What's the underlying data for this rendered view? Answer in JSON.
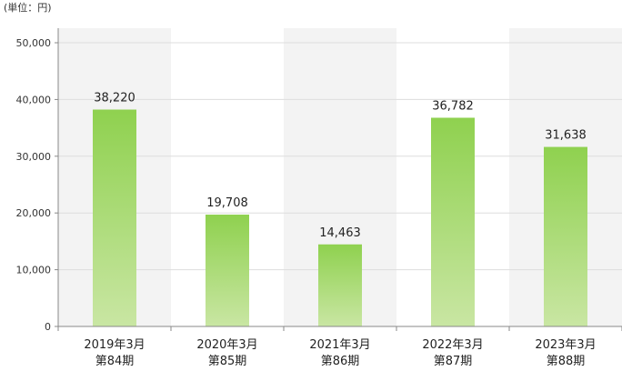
{
  "chart_data": {
    "type": "bar",
    "unit_label": "(単位：円)",
    "categories": [
      [
        "2019年3月",
        "第84期"
      ],
      [
        "2020年3月",
        "第85期"
      ],
      [
        "2021年3月",
        "第86期"
      ],
      [
        "2022年3月",
        "第87期"
      ],
      [
        "2023年3月",
        "第88期"
      ]
    ],
    "values": [
      38220,
      19708,
      14463,
      36782,
      31638
    ],
    "data_labels": [
      "38,220",
      "19,708",
      "14,463",
      "36,782",
      "31,638"
    ],
    "ylim": [
      0,
      50000
    ],
    "yticks": [
      0,
      10000,
      20000,
      30000,
      40000,
      50000
    ],
    "ytick_labels": [
      "0",
      "10,000",
      "20,000",
      "30,000",
      "40,000",
      "50,000"
    ],
    "grid": true,
    "colors": {
      "bar_top": "#8fd14f",
      "bar_bottom": "#c9e6a3",
      "band": "#f3f3f3",
      "grid": "#dddddd",
      "axis": "#888888"
    }
  }
}
